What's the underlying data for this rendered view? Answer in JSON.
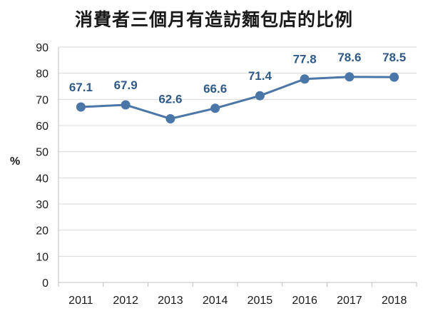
{
  "chart_data": {
    "type": "line",
    "title": "消費者三個月有造訪麵包店的比例",
    "ylabel": "%",
    "xlabel": "",
    "categories": [
      "2011",
      "2012",
      "2013",
      "2014",
      "2015",
      "2016",
      "2017",
      "2018"
    ],
    "series": [
      {
        "values": [
          67.1,
          67.9,
          62.6,
          66.6,
          71.4,
          77.8,
          78.6,
          78.5
        ]
      }
    ],
    "ylim": [
      0,
      90
    ],
    "yticks": [
      0,
      10,
      20,
      30,
      40,
      50,
      60,
      70,
      80,
      90
    ],
    "data_labels": [
      "67.1",
      "67.9",
      "62.6",
      "66.6",
      "71.4",
      "77.8",
      "78.6",
      "78.5"
    ],
    "grid": "horizontal",
    "colors": {
      "line": "#4a76a8",
      "marker": "#4a76a8",
      "data_label": "#2f5a86",
      "grid": "#d9d9d9"
    }
  }
}
